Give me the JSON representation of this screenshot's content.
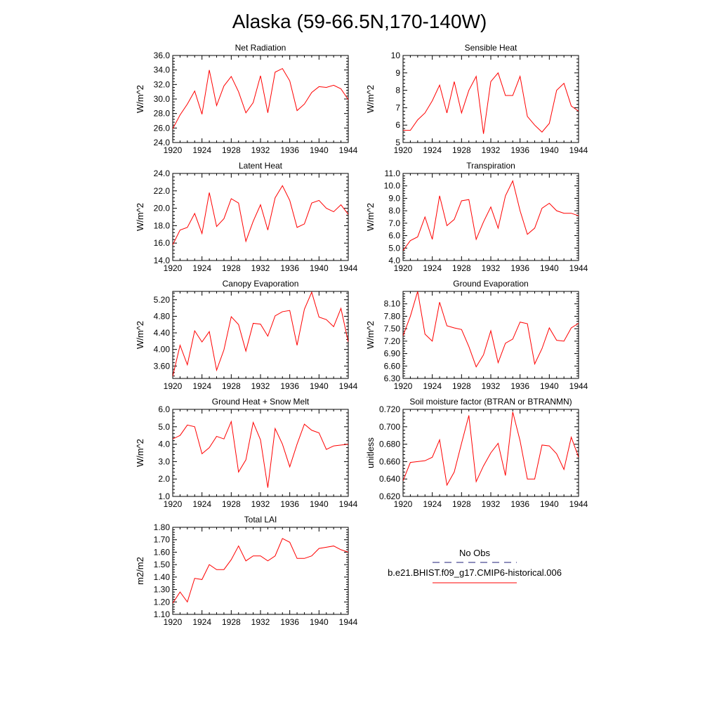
{
  "page_title": "Alaska (59-66.5N,170-140W)",
  "colors": {
    "series": "#ff0000",
    "obs": "#1f1f7a",
    "axis": "#000000"
  },
  "legend": {
    "obs_label": "No Obs",
    "model_label": "b.e21.BHIST.f09_g17.CMIP6-historical.006"
  },
  "chart_data": [
    {
      "type": "line",
      "title": "Net Radiation",
      "ylabel": "W/m^2",
      "x": [
        1920,
        1921,
        1922,
        1923,
        1924,
        1925,
        1926,
        1927,
        1928,
        1929,
        1930,
        1931,
        1932,
        1933,
        1934,
        1935,
        1936,
        1937,
        1938,
        1939,
        1940,
        1941,
        1942,
        1943,
        1944
      ],
      "xlim": [
        1920,
        1944
      ],
      "xticks": [
        "1920",
        "1924",
        "1928",
        "1932",
        "1936",
        "1940",
        "1944"
      ],
      "ylim": [
        24,
        36
      ],
      "yticks": [
        "24.0",
        "26.0",
        "28.0",
        "30.0",
        "32.0",
        "34.0",
        "36.0"
      ],
      "series": [
        {
          "values": [
            25.9,
            27.8,
            29.3,
            31.1,
            27.9,
            34.0,
            29.1,
            31.8,
            33.1,
            31.0,
            28.1,
            29.5,
            33.2,
            28.1,
            33.7,
            34.2,
            32.5,
            28.4,
            29.3,
            30.9,
            31.7,
            31.6,
            31.9,
            31.4,
            29.9
          ]
        }
      ]
    },
    {
      "type": "line",
      "title": "Sensible Heat",
      "ylabel": "W/m^2",
      "x": [
        1920,
        1921,
        1922,
        1923,
        1924,
        1925,
        1926,
        1927,
        1928,
        1929,
        1930,
        1931,
        1932,
        1933,
        1934,
        1935,
        1936,
        1937,
        1938,
        1939,
        1940,
        1941,
        1942,
        1943,
        1944
      ],
      "xlim": [
        1920,
        1944
      ],
      "xticks": [
        "1920",
        "1924",
        "1928",
        "1932",
        "1936",
        "1940",
        "1944"
      ],
      "ylim": [
        5,
        10
      ],
      "yticks": [
        "5",
        "6",
        "7",
        "8",
        "9",
        "10"
      ],
      "series": [
        {
          "values": [
            5.7,
            5.7,
            6.3,
            6.7,
            7.4,
            8.3,
            6.7,
            8.5,
            6.7,
            8.0,
            8.8,
            5.5,
            8.5,
            9.0,
            7.7,
            7.7,
            8.8,
            6.5,
            6.0,
            5.6,
            6.1,
            8.0,
            8.4,
            7.1,
            6.8
          ]
        }
      ]
    },
    {
      "type": "line",
      "title": "Latent Heat",
      "ylabel": "W/m^2",
      "x": [
        1920,
        1921,
        1922,
        1923,
        1924,
        1925,
        1926,
        1927,
        1928,
        1929,
        1930,
        1931,
        1932,
        1933,
        1934,
        1935,
        1936,
        1937,
        1938,
        1939,
        1940,
        1941,
        1942,
        1943,
        1944
      ],
      "xlim": [
        1920,
        1944
      ],
      "xticks": [
        "1920",
        "1924",
        "1928",
        "1932",
        "1936",
        "1940",
        "1944"
      ],
      "ylim": [
        14,
        24
      ],
      "yticks": [
        "14.0",
        "16.0",
        "18.0",
        "20.0",
        "22.0",
        "24.0"
      ],
      "series": [
        {
          "values": [
            15.8,
            17.5,
            17.8,
            19.4,
            17.1,
            21.8,
            17.9,
            18.8,
            21.1,
            20.6,
            16.2,
            18.5,
            20.4,
            17.5,
            21.2,
            22.6,
            20.9,
            17.8,
            18.2,
            20.6,
            20.9,
            20.0,
            19.6,
            20.4,
            19.3
          ]
        }
      ]
    },
    {
      "type": "line",
      "title": "Transpiration",
      "ylabel": "W/m^2",
      "x": [
        1920,
        1921,
        1922,
        1923,
        1924,
        1925,
        1926,
        1927,
        1928,
        1929,
        1930,
        1931,
        1932,
        1933,
        1934,
        1935,
        1936,
        1937,
        1938,
        1939,
        1940,
        1941,
        1942,
        1943,
        1944
      ],
      "xlim": [
        1920,
        1944
      ],
      "xticks": [
        "1920",
        "1924",
        "1928",
        "1932",
        "1936",
        "1940",
        "1944"
      ],
      "ylim": [
        4,
        11
      ],
      "yticks": [
        "4.0",
        "5.0",
        "6.0",
        "7.0",
        "8.0",
        "9.0",
        "10.0",
        "11.0"
      ],
      "series": [
        {
          "values": [
            4.8,
            5.6,
            5.9,
            7.5,
            5.7,
            9.2,
            6.8,
            7.3,
            8.8,
            8.9,
            5.7,
            7.1,
            8.3,
            6.6,
            9.2,
            10.4,
            8.0,
            6.1,
            6.6,
            8.2,
            8.6,
            8.0,
            7.8,
            7.8,
            7.6
          ]
        }
      ]
    },
    {
      "type": "line",
      "title": "Canopy Evaporation",
      "ylabel": "W/m^2",
      "x": [
        1920,
        1921,
        1922,
        1923,
        1924,
        1925,
        1926,
        1927,
        1928,
        1929,
        1930,
        1931,
        1932,
        1933,
        1934,
        1935,
        1936,
        1937,
        1938,
        1939,
        1940,
        1941,
        1942,
        1943,
        1944
      ],
      "xlim": [
        1920,
        1944
      ],
      "xticks": [
        "1920",
        "1924",
        "1928",
        "1932",
        "1936",
        "1940",
        "1944"
      ],
      "ylim": [
        3.3,
        5.4
      ],
      "yticks": [
        "3.60",
        "4.00",
        "4.40",
        "4.80",
        "5.20"
      ],
      "series": [
        {
          "values": [
            3.35,
            4.1,
            3.63,
            4.45,
            4.18,
            4.43,
            3.5,
            3.99,
            4.79,
            4.6,
            3.96,
            4.63,
            4.61,
            4.32,
            4.81,
            4.91,
            4.94,
            4.1,
            4.97,
            5.38,
            4.78,
            4.72,
            4.55,
            4.99,
            4.18
          ]
        }
      ]
    },
    {
      "type": "line",
      "title": "Ground Evaporation",
      "ylabel": "W/m^2",
      "x": [
        1920,
        1921,
        1922,
        1923,
        1924,
        1925,
        1926,
        1927,
        1928,
        1929,
        1930,
        1931,
        1932,
        1933,
        1934,
        1935,
        1936,
        1937,
        1938,
        1939,
        1940,
        1941,
        1942,
        1943,
        1944
      ],
      "xlim": [
        1920,
        1944
      ],
      "xticks": [
        "1920",
        "1924",
        "1928",
        "1932",
        "1936",
        "1940",
        "1944"
      ],
      "ylim": [
        6.3,
        8.4
      ],
      "yticks": [
        "6.30",
        "6.60",
        "6.90",
        "7.20",
        "7.50",
        "7.80",
        "8.10"
      ],
      "series": [
        {
          "values": [
            7.33,
            7.8,
            8.4,
            7.37,
            7.2,
            8.14,
            7.57,
            7.52,
            7.48,
            7.07,
            6.58,
            6.87,
            7.45,
            6.68,
            7.15,
            7.25,
            7.66,
            7.62,
            6.65,
            7.02,
            7.52,
            7.22,
            7.2,
            7.52,
            7.63
          ]
        }
      ]
    },
    {
      "type": "line",
      "title": "Ground Heat + Snow Melt",
      "ylabel": "W/m^2",
      "x": [
        1920,
        1921,
        1922,
        1923,
        1924,
        1925,
        1926,
        1927,
        1928,
        1929,
        1930,
        1931,
        1932,
        1933,
        1934,
        1935,
        1936,
        1937,
        1938,
        1939,
        1940,
        1941,
        1942,
        1943,
        1944
      ],
      "xlim": [
        1920,
        1944
      ],
      "xticks": [
        "1920",
        "1924",
        "1928",
        "1932",
        "1936",
        "1940",
        "1944"
      ],
      "ylim": [
        1,
        6
      ],
      "yticks": [
        "1.0",
        "2.0",
        "3.0",
        "4.0",
        "5.0",
        "6.0"
      ],
      "series": [
        {
          "values": [
            4.3,
            4.5,
            5.1,
            5.0,
            3.45,
            3.8,
            4.45,
            4.3,
            5.3,
            2.4,
            3.1,
            5.25,
            4.25,
            1.5,
            4.9,
            4.0,
            2.7,
            4.0,
            5.15,
            4.8,
            4.65,
            3.7,
            3.9,
            3.95,
            4.0
          ]
        }
      ]
    },
    {
      "type": "line",
      "title": "Soil moisture factor (BTRAN or BTRANMN)",
      "ylabel": "unitless",
      "x": [
        1920,
        1921,
        1922,
        1923,
        1924,
        1925,
        1926,
        1927,
        1928,
        1929,
        1930,
        1931,
        1932,
        1933,
        1934,
        1935,
        1936,
        1937,
        1938,
        1939,
        1940,
        1941,
        1942,
        1943,
        1944
      ],
      "xlim": [
        1920,
        1944
      ],
      "xticks": [
        "1920",
        "1924",
        "1928",
        "1932",
        "1936",
        "1940",
        "1944"
      ],
      "ylim": [
        0.62,
        0.72
      ],
      "yticks": [
        "0.620",
        "0.640",
        "0.660",
        "0.680",
        "0.700",
        "0.720"
      ],
      "series": [
        {
          "values": [
            0.638,
            0.659,
            0.66,
            0.661,
            0.665,
            0.685,
            0.633,
            0.648,
            0.681,
            0.713,
            0.637,
            0.655,
            0.67,
            0.681,
            0.644,
            0.717,
            0.684,
            0.64,
            0.64,
            0.679,
            0.678,
            0.669,
            0.651,
            0.688,
            0.665
          ]
        }
      ]
    },
    {
      "type": "line",
      "title": "Total LAI",
      "ylabel": "m2/m2",
      "x": [
        1920,
        1921,
        1922,
        1923,
        1924,
        1925,
        1926,
        1927,
        1928,
        1929,
        1930,
        1931,
        1932,
        1933,
        1934,
        1935,
        1936,
        1937,
        1938,
        1939,
        1940,
        1941,
        1942,
        1943,
        1944
      ],
      "xlim": [
        1920,
        1944
      ],
      "xticks": [
        "1920",
        "1924",
        "1928",
        "1932",
        "1936",
        "1940",
        "1944"
      ],
      "ylim": [
        1.1,
        1.8
      ],
      "yticks": [
        "1.10",
        "1.20",
        "1.30",
        "1.40",
        "1.50",
        "1.60",
        "1.70",
        "1.80"
      ],
      "series": [
        {
          "values": [
            1.19,
            1.28,
            1.2,
            1.39,
            1.38,
            1.5,
            1.46,
            1.46,
            1.54,
            1.65,
            1.53,
            1.57,
            1.57,
            1.53,
            1.57,
            1.71,
            1.68,
            1.55,
            1.55,
            1.57,
            1.63,
            1.64,
            1.65,
            1.62,
            1.6
          ]
        }
      ]
    }
  ]
}
